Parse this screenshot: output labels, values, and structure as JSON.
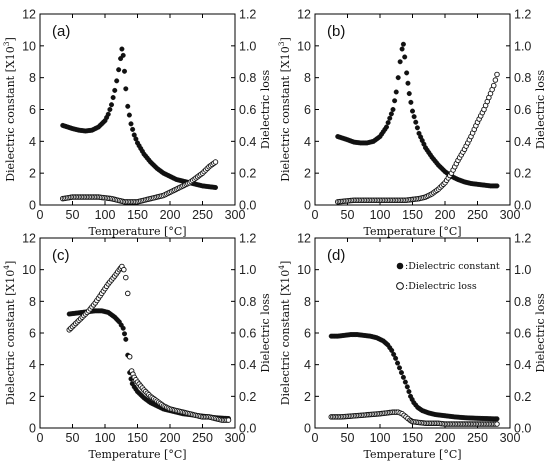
{
  "chart_data": [
    {
      "type": "scatter",
      "panel_label": "(a)",
      "xlabel": "Temperature [°C]",
      "ylabel_left": "Dielectric constant [X10",
      "ylabel_left_exp": "3",
      "ylabel_right": "Dielectric loss",
      "xlim": [
        0,
        300
      ],
      "ylim_left": [
        0,
        12
      ],
      "ylim_right": [
        0,
        1.2
      ],
      "x_ticks": [
        "0",
        "50",
        "100",
        "150",
        "200",
        "250",
        "300"
      ],
      "y_left_ticks": [
        "0",
        "2",
        "4",
        "6",
        "8",
        "10",
        "12"
      ],
      "y_right_ticks": [
        "0.0",
        "0.2",
        "0.4",
        "0.6",
        "0.8",
        "1.0",
        "1.2"
      ],
      "series": [
        {
          "marker": "filled-circle",
          "axis": "left",
          "x": [
            35,
            50,
            60,
            70,
            80,
            90,
            100,
            105,
            110,
            115,
            118,
            121,
            124,
            126,
            128,
            130,
            132,
            135,
            140,
            145,
            150,
            160,
            170,
            180,
            190,
            200,
            210,
            220,
            230,
            240,
            250,
            260,
            270
          ],
          "y": [
            5.0,
            4.8,
            4.7,
            4.65,
            4.7,
            4.9,
            5.3,
            5.7,
            6.3,
            7.2,
            7.8,
            8.5,
            9.2,
            9.8,
            9.4,
            8.4,
            7.3,
            6.2,
            5.1,
            4.4,
            3.9,
            3.2,
            2.7,
            2.3,
            2.0,
            1.8,
            1.6,
            1.5,
            1.4,
            1.3,
            1.2,
            1.15,
            1.1
          ]
        },
        {
          "marker": "open-circle",
          "axis": "right",
          "x": [
            35,
            50,
            70,
            90,
            110,
            120,
            130,
            140,
            150,
            160,
            170,
            180,
            190,
            200,
            210,
            220,
            230,
            240,
            250,
            260,
            270
          ],
          "y": [
            0.04,
            0.05,
            0.05,
            0.05,
            0.04,
            0.03,
            0.02,
            0.02,
            0.02,
            0.03,
            0.04,
            0.05,
            0.06,
            0.08,
            0.1,
            0.12,
            0.14,
            0.17,
            0.2,
            0.24,
            0.27
          ]
        }
      ],
      "legend": []
    },
    {
      "type": "scatter",
      "panel_label": "(b)",
      "xlabel": "Temperature [°C]",
      "ylabel_left": "Dielectric constant [X10",
      "ylabel_left_exp": "3",
      "ylabel_right": "Dielectric loss",
      "xlim": [
        0,
        300
      ],
      "ylim_left": [
        0,
        12
      ],
      "ylim_right": [
        0,
        1.2
      ],
      "x_ticks": [
        "0",
        "50",
        "100",
        "150",
        "200",
        "250",
        "300"
      ],
      "y_left_ticks": [
        "0",
        "2",
        "4",
        "6",
        "8",
        "10",
        "12"
      ],
      "y_right_ticks": [
        "0.0",
        "0.2",
        "0.4",
        "0.6",
        "0.8",
        "1.0",
        "1.2"
      ],
      "series": [
        {
          "marker": "filled-circle",
          "axis": "left",
          "x": [
            35,
            50,
            60,
            70,
            80,
            90,
            100,
            110,
            120,
            125,
            128,
            131,
            134,
            136,
            138,
            141,
            145,
            150,
            160,
            170,
            180,
            190,
            200,
            210,
            220,
            230,
            240,
            250,
            260,
            270,
            280
          ],
          "y": [
            4.3,
            4.1,
            3.95,
            3.9,
            3.9,
            4.0,
            4.3,
            4.9,
            6.0,
            7.1,
            8.0,
            9.0,
            9.8,
            10.1,
            9.3,
            8.3,
            7.0,
            5.9,
            4.5,
            3.6,
            3.0,
            2.5,
            2.1,
            1.8,
            1.6,
            1.45,
            1.35,
            1.3,
            1.25,
            1.2,
            1.2
          ]
        },
        {
          "marker": "open-circle",
          "axis": "right",
          "x": [
            35,
            60,
            90,
            120,
            140,
            160,
            170,
            180,
            190,
            200,
            210,
            220,
            230,
            240,
            250,
            260,
            270,
            275,
            280
          ],
          "y": [
            0.02,
            0.03,
            0.03,
            0.03,
            0.03,
            0.04,
            0.05,
            0.07,
            0.1,
            0.14,
            0.2,
            0.28,
            0.35,
            0.43,
            0.52,
            0.6,
            0.7,
            0.75,
            0.82
          ]
        }
      ],
      "legend": []
    },
    {
      "type": "scatter",
      "panel_label": "(c)",
      "xlabel": "Temperature [°C]",
      "ylabel_left": "Dielectric constant [X10",
      "ylabel_left_exp": "4",
      "ylabel_right": "Dielectric loss",
      "xlim": [
        0,
        300
      ],
      "ylim_left": [
        0,
        12
      ],
      "ylim_right": [
        0,
        1.2
      ],
      "x_ticks": [
        "0",
        "50",
        "100",
        "150",
        "200",
        "250",
        "300"
      ],
      "y_left_ticks": [
        "0",
        "2",
        "4",
        "6",
        "8",
        "10",
        "12"
      ],
      "y_right_ticks": [
        "0.0",
        "0.2",
        "0.4",
        "0.6",
        "0.8",
        "1.0",
        "1.2"
      ],
      "series": [
        {
          "marker": "filled-circle",
          "axis": "left",
          "x": [
            45,
            55,
            65,
            75,
            85,
            95,
            105,
            115,
            122,
            128,
            132,
            135,
            138,
            140,
            142,
            145,
            150,
            160,
            170,
            180,
            190,
            200,
            210,
            220,
            230,
            240,
            250,
            260,
            270,
            280,
            290
          ],
          "y": [
            7.2,
            7.25,
            7.3,
            7.35,
            7.4,
            7.4,
            7.3,
            7.0,
            6.7,
            6.3,
            5.6,
            4.6,
            3.5,
            3.1,
            2.8,
            2.6,
            2.3,
            1.9,
            1.6,
            1.4,
            1.2,
            1.1,
            1.0,
            0.9,
            0.85,
            0.8,
            0.75,
            0.7,
            0.65,
            0.62,
            0.6
          ]
        },
        {
          "marker": "open-circle",
          "axis": "right",
          "x": [
            45,
            55,
            65,
            75,
            85,
            95,
            105,
            115,
            122,
            126,
            129,
            132,
            135,
            138,
            141,
            145,
            150,
            160,
            170,
            180,
            190,
            200,
            210,
            220,
            230,
            240,
            250,
            260,
            270,
            280,
            290
          ],
          "y": [
            0.62,
            0.66,
            0.7,
            0.74,
            0.79,
            0.85,
            0.91,
            0.96,
            1.0,
            1.02,
            1.0,
            0.95,
            0.85,
            0.45,
            0.36,
            0.32,
            0.29,
            0.24,
            0.2,
            0.17,
            0.14,
            0.12,
            0.11,
            0.1,
            0.09,
            0.08,
            0.07,
            0.07,
            0.06,
            0.05,
            0.05
          ]
        }
      ],
      "legend": []
    },
    {
      "type": "scatter",
      "panel_label": "(d)",
      "xlabel": "Temperature [°C]",
      "ylabel_left": "Dielectric constant [X10",
      "ylabel_left_exp": "4",
      "ylabel_right": "Dielectric loss",
      "xlim": [
        0,
        300
      ],
      "ylim_left": [
        0,
        12
      ],
      "ylim_right": [
        0,
        1.2
      ],
      "x_ticks": [
        "0",
        "50",
        "100",
        "150",
        "200",
        "250",
        "300"
      ],
      "y_left_ticks": [
        "0",
        "2",
        "4",
        "6",
        "8",
        "10",
        "12"
      ],
      "y_right_ticks": [
        "0.0",
        "0.2",
        "0.4",
        "0.6",
        "0.8",
        "1.0",
        "1.2"
      ],
      "series": [
        {
          "marker": "filled-circle",
          "axis": "left",
          "x": [
            25,
            35,
            45,
            55,
            65,
            75,
            85,
            95,
            105,
            112,
            118,
            124,
            130,
            136,
            142,
            147,
            152,
            158,
            165,
            175,
            185,
            195,
            205,
            215,
            230,
            245,
            260,
            275,
            280
          ],
          "y": [
            5.8,
            5.8,
            5.85,
            5.9,
            5.9,
            5.85,
            5.8,
            5.7,
            5.5,
            5.25,
            4.9,
            4.4,
            3.8,
            3.2,
            2.6,
            2.0,
            1.6,
            1.3,
            1.1,
            0.95,
            0.85,
            0.8,
            0.75,
            0.7,
            0.65,
            0.62,
            0.6,
            0.58,
            0.58
          ]
        },
        {
          "marker": "open-circle",
          "axis": "right",
          "x": [
            25,
            40,
            55,
            70,
            85,
            100,
            110,
            120,
            128,
            134,
            140,
            146,
            150,
            160,
            170,
            180,
            190,
            200,
            210,
            220,
            230,
            240,
            250,
            260,
            270,
            280
          ],
          "y": [
            0.07,
            0.07,
            0.075,
            0.08,
            0.085,
            0.09,
            0.095,
            0.1,
            0.1,
            0.09,
            0.07,
            0.05,
            0.04,
            0.035,
            0.03,
            0.03,
            0.03,
            0.025,
            0.025,
            0.025,
            0.025,
            0.025,
            0.025,
            0.025,
            0.025,
            0.025
          ]
        }
      ],
      "legend": [
        {
          "marker": "filled-circle",
          "label": ":Dielectric constant"
        },
        {
          "marker": "open-circle",
          "label": ":Dielectric loss"
        }
      ]
    }
  ]
}
